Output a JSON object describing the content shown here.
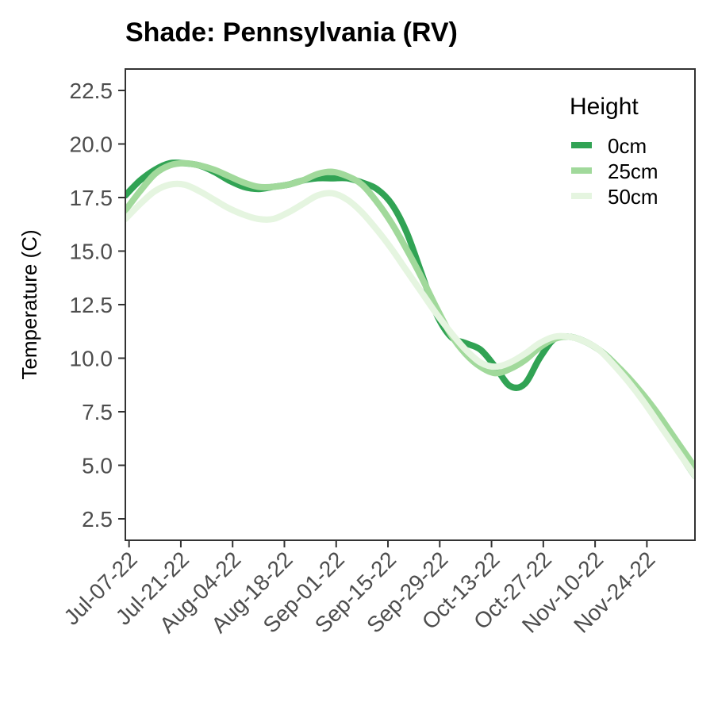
{
  "chart_data": {
    "type": "line",
    "title": "Shade: Pennsylvania (RV)",
    "xlabel": "",
    "ylabel": "Temperature (C)",
    "x_type": "date",
    "xlim": [
      "2022-07-06",
      "2022-12-07"
    ],
    "ylim": [
      1.5,
      23.5
    ],
    "x_ticks": [
      "2022-07-07",
      "2022-07-21",
      "2022-08-04",
      "2022-08-18",
      "2022-09-01",
      "2022-09-15",
      "2022-09-29",
      "2022-10-13",
      "2022-10-27",
      "2022-11-10",
      "2022-11-24"
    ],
    "x_tick_labels": [
      "Jul-07-22",
      "Jul-21-22",
      "Aug-04-22",
      "Aug-18-22",
      "Sep-01-22",
      "Sep-15-22",
      "Sep-29-22",
      "Oct-13-22",
      "Oct-27-22",
      "Nov-10-22",
      "Nov-24-22"
    ],
    "y_ticks": [
      2.5,
      5.0,
      7.5,
      10.0,
      12.5,
      15.0,
      17.5,
      20.0,
      22.5
    ],
    "y_tick_labels": [
      "2.5",
      "5.0",
      "7.5",
      "10.0",
      "12.5",
      "15.0",
      "17.5",
      "20.0",
      "22.5"
    ],
    "grid": false,
    "legend": {
      "title": "Height",
      "position": "top-right"
    },
    "series": [
      {
        "name": "0cm",
        "color": "#31a354",
        "points": [
          [
            "2022-07-06",
            17.6
          ],
          [
            "2022-07-10",
            18.3
          ],
          [
            "2022-07-14",
            18.8
          ],
          [
            "2022-07-18",
            19.1
          ],
          [
            "2022-07-22",
            19.1
          ],
          [
            "2022-07-26",
            19.0
          ],
          [
            "2022-07-30",
            18.7
          ],
          [
            "2022-08-03",
            18.3
          ],
          [
            "2022-08-07",
            18.0
          ],
          [
            "2022-08-11",
            17.9
          ],
          [
            "2022-08-15",
            18.0
          ],
          [
            "2022-08-19",
            18.1
          ],
          [
            "2022-08-23",
            18.3
          ],
          [
            "2022-08-27",
            18.4
          ],
          [
            "2022-08-31",
            18.4
          ],
          [
            "2022-09-04",
            18.4
          ],
          [
            "2022-09-08",
            18.2
          ],
          [
            "2022-09-12",
            17.9
          ],
          [
            "2022-09-16",
            17.2
          ],
          [
            "2022-09-20",
            15.9
          ],
          [
            "2022-09-24",
            14.0
          ],
          [
            "2022-09-28",
            12.1
          ],
          [
            "2022-10-02",
            11.0
          ],
          [
            "2022-10-06",
            10.7
          ],
          [
            "2022-10-10",
            10.4
          ],
          [
            "2022-10-14",
            9.6
          ],
          [
            "2022-10-18",
            8.7
          ],
          [
            "2022-10-22",
            8.8
          ],
          [
            "2022-10-26",
            10.0
          ],
          [
            "2022-10-30",
            10.9
          ],
          [
            "2022-11-03",
            11.0
          ],
          [
            "2022-11-07",
            10.8
          ],
          [
            "2022-11-11",
            10.4
          ],
          [
            "2022-11-15",
            9.8
          ],
          [
            "2022-11-19",
            9.0
          ],
          [
            "2022-11-23",
            8.1
          ],
          [
            "2022-11-27",
            7.1
          ],
          [
            "2022-12-01",
            6.1
          ],
          [
            "2022-12-05",
            5.0
          ],
          [
            "2022-12-07",
            4.5
          ]
        ]
      },
      {
        "name": "25cm",
        "color": "#a1d99b",
        "points": [
          [
            "2022-07-06",
            16.9
          ],
          [
            "2022-07-10",
            17.8
          ],
          [
            "2022-07-14",
            18.6
          ],
          [
            "2022-07-18",
            19.0
          ],
          [
            "2022-07-22",
            19.1
          ],
          [
            "2022-07-26",
            19.0
          ],
          [
            "2022-07-30",
            18.8
          ],
          [
            "2022-08-03",
            18.5
          ],
          [
            "2022-08-07",
            18.2
          ],
          [
            "2022-08-11",
            18.0
          ],
          [
            "2022-08-15",
            18.0
          ],
          [
            "2022-08-19",
            18.1
          ],
          [
            "2022-08-23",
            18.3
          ],
          [
            "2022-08-27",
            18.6
          ],
          [
            "2022-08-31",
            18.7
          ],
          [
            "2022-09-04",
            18.5
          ],
          [
            "2022-09-08",
            18.1
          ],
          [
            "2022-09-12",
            17.3
          ],
          [
            "2022-09-16",
            16.3
          ],
          [
            "2022-09-20",
            15.1
          ],
          [
            "2022-09-24",
            13.8
          ],
          [
            "2022-09-28",
            12.4
          ],
          [
            "2022-10-02",
            11.1
          ],
          [
            "2022-10-06",
            10.2
          ],
          [
            "2022-10-10",
            9.6
          ],
          [
            "2022-10-14",
            9.3
          ],
          [
            "2022-10-18",
            9.5
          ],
          [
            "2022-10-22",
            9.9
          ],
          [
            "2022-10-26",
            10.5
          ],
          [
            "2022-10-30",
            10.9
          ],
          [
            "2022-11-03",
            11.0
          ],
          [
            "2022-11-07",
            10.8
          ],
          [
            "2022-11-11",
            10.4
          ],
          [
            "2022-11-15",
            9.8
          ],
          [
            "2022-11-19",
            9.1
          ],
          [
            "2022-11-23",
            8.3
          ],
          [
            "2022-11-27",
            7.4
          ],
          [
            "2022-12-01",
            6.4
          ],
          [
            "2022-12-05",
            5.4
          ],
          [
            "2022-12-07",
            4.9
          ]
        ]
      },
      {
        "name": "50cm",
        "color": "#e5f5e0",
        "points": [
          [
            "2022-07-06",
            16.5
          ],
          [
            "2022-07-10",
            17.2
          ],
          [
            "2022-07-14",
            17.8
          ],
          [
            "2022-07-18",
            18.1
          ],
          [
            "2022-07-22",
            18.1
          ],
          [
            "2022-07-26",
            17.8
          ],
          [
            "2022-07-30",
            17.4
          ],
          [
            "2022-08-03",
            17.0
          ],
          [
            "2022-08-07",
            16.7
          ],
          [
            "2022-08-11",
            16.5
          ],
          [
            "2022-08-15",
            16.5
          ],
          [
            "2022-08-19",
            16.8
          ],
          [
            "2022-08-23",
            17.2
          ],
          [
            "2022-08-27",
            17.6
          ],
          [
            "2022-08-31",
            17.7
          ],
          [
            "2022-09-04",
            17.4
          ],
          [
            "2022-09-08",
            16.8
          ],
          [
            "2022-09-12",
            16.0
          ],
          [
            "2022-09-16",
            15.1
          ],
          [
            "2022-09-20",
            14.1
          ],
          [
            "2022-09-24",
            13.1
          ],
          [
            "2022-09-28",
            12.1
          ],
          [
            "2022-10-02",
            11.2
          ],
          [
            "2022-10-06",
            10.4
          ],
          [
            "2022-10-10",
            9.8
          ],
          [
            "2022-10-14",
            9.6
          ],
          [
            "2022-10-18",
            9.8
          ],
          [
            "2022-10-22",
            10.2
          ],
          [
            "2022-10-26",
            10.7
          ],
          [
            "2022-10-30",
            11.0
          ],
          [
            "2022-11-03",
            11.0
          ],
          [
            "2022-11-07",
            10.8
          ],
          [
            "2022-11-11",
            10.4
          ],
          [
            "2022-11-15",
            9.7
          ],
          [
            "2022-11-19",
            8.9
          ],
          [
            "2022-11-23",
            8.0
          ],
          [
            "2022-11-27",
            7.0
          ],
          [
            "2022-12-01",
            6.0
          ],
          [
            "2022-12-05",
            5.0
          ],
          [
            "2022-12-07",
            4.5
          ]
        ]
      }
    ]
  }
}
